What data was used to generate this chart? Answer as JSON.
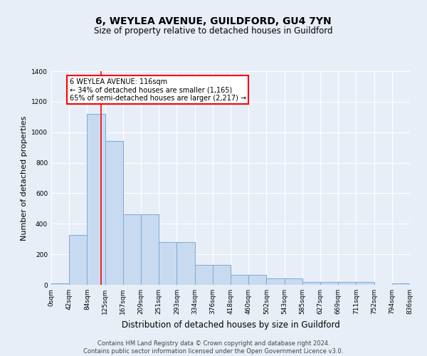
{
  "title": "6, WEYLEA AVENUE, GUILDFORD, GU4 7YN",
  "subtitle": "Size of property relative to detached houses in Guildford",
  "xlabel": "Distribution of detached houses by size in Guildford",
  "ylabel": "Number of detached properties",
  "footer_line1": "Contains HM Land Registry data © Crown copyright and database right 2024.",
  "footer_line2": "Contains public sector information licensed under the Open Government Licence v3.0.",
  "bin_labels": [
    "0sqm",
    "42sqm",
    "84sqm",
    "125sqm",
    "167sqm",
    "209sqm",
    "251sqm",
    "293sqm",
    "334sqm",
    "376sqm",
    "418sqm",
    "460sqm",
    "502sqm",
    "543sqm",
    "585sqm",
    "627sqm",
    "669sqm",
    "711sqm",
    "752sqm",
    "794sqm",
    "836sqm"
  ],
  "bar_heights": [
    10,
    325,
    1120,
    945,
    460,
    460,
    280,
    280,
    130,
    130,
    65,
    65,
    40,
    40,
    20,
    20,
    20,
    20,
    0,
    10,
    10
  ],
  "bar_color": "#c8daf0",
  "bar_edge_color": "#7aaad8",
  "property_line_x": 116,
  "property_line_label": "6 WEYLEA AVENUE: 116sqm",
  "annotation_line1": "← 34% of detached houses are smaller (1,165)",
  "annotation_line2": "65% of semi-detached houses are larger (2,217) →",
  "annotation_box_color": "white",
  "annotation_box_edgecolor": "red",
  "vline_color": "red",
  "ylim": [
    0,
    1400
  ],
  "yticks": [
    0,
    200,
    400,
    600,
    800,
    1000,
    1200,
    1400
  ],
  "background_color": "#e8eef8",
  "grid_color": "white",
  "bin_width": 42,
  "title_fontsize": 10,
  "subtitle_fontsize": 8.5,
  "ylabel_fontsize": 8,
  "xlabel_fontsize": 8.5,
  "footer_fontsize": 6,
  "tick_fontsize": 6.5,
  "annot_fontsize": 7
}
